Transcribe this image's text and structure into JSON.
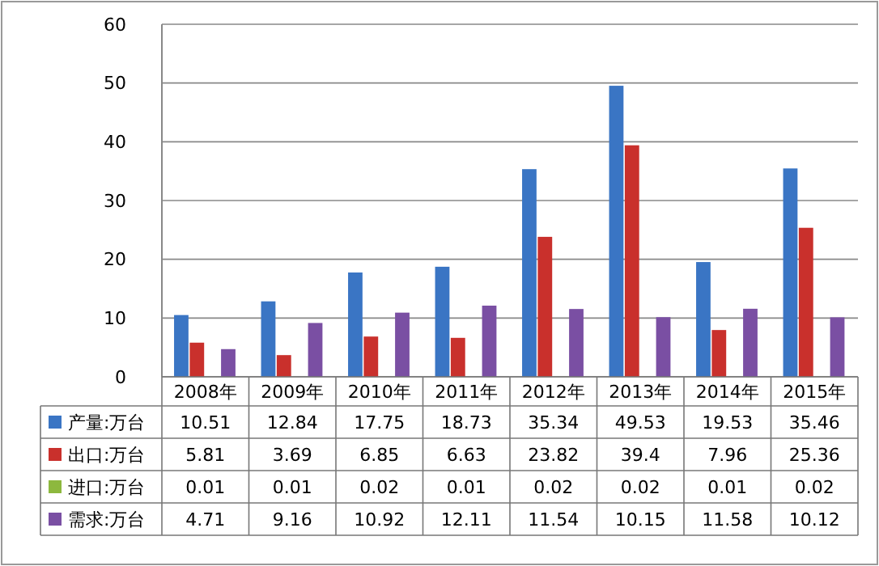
{
  "chart_data": {
    "type": "bar",
    "categories": [
      "2008年",
      "2009年",
      "2010年",
      "2011年",
      "2012年",
      "2013年",
      "2014年",
      "2015年"
    ],
    "series": [
      {
        "name": "产量:万台",
        "color": "#3a75c4",
        "values": [
          10.51,
          12.84,
          17.75,
          18.73,
          35.34,
          49.53,
          19.53,
          35.46
        ]
      },
      {
        "name": "出口:万台",
        "color": "#c9302c",
        "values": [
          5.81,
          3.69,
          6.85,
          6.63,
          23.82,
          39.4,
          7.96,
          25.36
        ]
      },
      {
        "name": "进口:万台",
        "color": "#8db83e",
        "values": [
          0.01,
          0.01,
          0.02,
          0.01,
          0.02,
          0.02,
          0.01,
          0.02
        ]
      },
      {
        "name": "需求:万台",
        "color": "#7a4fa3",
        "values": [
          4.71,
          9.16,
          10.92,
          12.11,
          11.54,
          10.15,
          11.58,
          10.12
        ]
      }
    ],
    "ylim": [
      0,
      60
    ],
    "yticks": [
      0,
      10,
      20,
      30,
      40,
      50,
      60
    ],
    "grid": "y",
    "legend": "bottom",
    "data_labels": true
  }
}
